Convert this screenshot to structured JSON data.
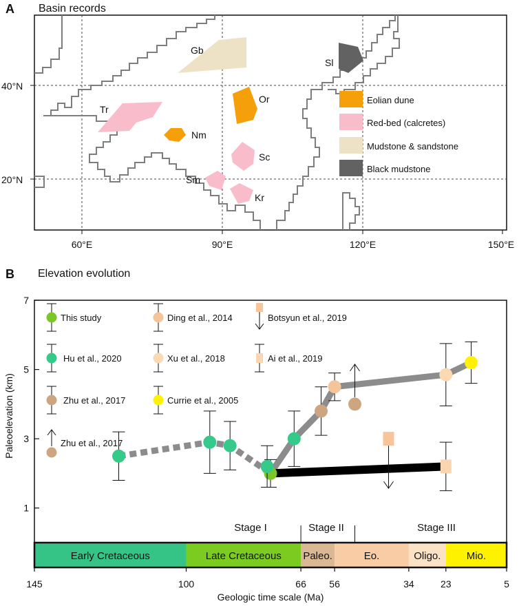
{
  "panel_a": {
    "letter": "A",
    "title": "Basin records",
    "lat_ticks": [
      "40°N",
      "20°N"
    ],
    "lon_ticks": [
      "60°E",
      "90°E",
      "120°E",
      "150°E"
    ],
    "sites": [
      {
        "code": "Gb",
        "type": "mudstone"
      },
      {
        "code": "Sl",
        "type": "black"
      },
      {
        "code": "Or",
        "type": "eolian"
      },
      {
        "code": "Tr",
        "type": "redbed"
      },
      {
        "code": "Nm",
        "type": "eolian"
      },
      {
        "code": "Sc",
        "type": "redbed"
      },
      {
        "code": "Sm",
        "type": "redbed"
      },
      {
        "code": "Kr",
        "type": "redbed"
      }
    ],
    "legend": [
      {
        "label": "Eolian dune",
        "color": "#f5a00a"
      },
      {
        "label": "Red-bed (calcretes)",
        "color": "#f9bccb"
      },
      {
        "label": "Mudstone & sandstone",
        "color": "#ede2c6"
      },
      {
        "label": "Black mudstone",
        "color": "#626262"
      }
    ]
  },
  "panel_b": {
    "letter": "B",
    "title": "Elevation evolution",
    "ylabel": "Paleoelevation (km)",
    "xlabel": "Geologic time scale (Ma)",
    "legend": [
      {
        "label": "This study",
        "color": "#7cc627"
      },
      {
        "label": "Ding et al., 2014",
        "color": "#f4c59a"
      },
      {
        "label": "Botsyun et al., 2019",
        "color": "#f8c59a"
      },
      {
        "label": "Hu et al., 2020",
        "color": "#35c98a"
      },
      {
        "label": "Xu et al., 2018",
        "color": "#fbd9b1"
      },
      {
        "label": "Ai et al., 2019",
        "color": "#fbd4b0"
      },
      {
        "label": "Zhu et al., 2017",
        "color": "#cda581"
      },
      {
        "label": "Currie et al., 2005",
        "color": "#fff200"
      },
      {
        "label": "Zhu et al., 2017",
        "color": "#cda581"
      }
    ],
    "stages": [
      "Stage I",
      "Stage II",
      "Stage III"
    ],
    "epochs": [
      {
        "label": "Early Cretaceous",
        "start": 145,
        "end": 100,
        "color": "#35c486"
      },
      {
        "label": "Late Cretaceous",
        "start": 100,
        "end": 66,
        "color": "#7ccb20"
      },
      {
        "label": "Paleo.",
        "start": 66,
        "end": 56,
        "color": "#d9b893"
      },
      {
        "label": "Eo.",
        "start": 56,
        "end": 34,
        "color": "#f8cda6"
      },
      {
        "label": "Oligo.",
        "start": 34,
        "end": 23,
        "color": "#fbe2c4"
      },
      {
        "label": "Mio.",
        "start": 23,
        "end": 5,
        "color": "#fff200"
      }
    ]
  },
  "chart_data": {
    "type": "scatter",
    "x_unit": "Ma",
    "xlim": [
      145,
      5
    ],
    "ylim": [
      0,
      7
    ],
    "x_ticks": [
      145,
      100,
      66,
      56,
      34,
      23,
      5
    ],
    "y_ticks": [
      1,
      3,
      5,
      7
    ],
    "series": [
      {
        "name": "This study",
        "color": "#7cc627",
        "points": [
          {
            "x": 75,
            "y": 2.0,
            "err": 0.4
          }
        ]
      },
      {
        "name": "Hu et al., 2020",
        "color": "#35c98a",
        "points": [
          {
            "x": 120,
            "y": 2.5,
            "err": 0.7
          },
          {
            "x": 93,
            "y": 2.9,
            "err": 0.9
          },
          {
            "x": 87,
            "y": 2.8,
            "err": 0.7
          },
          {
            "x": 76,
            "y": 2.2,
            "err": 0.6
          },
          {
            "x": 68,
            "y": 3.0,
            "err": 0.8
          }
        ]
      },
      {
        "name": "Zhu et al., 2017",
        "color": "#cda581",
        "points": [
          {
            "x": 60,
            "y": 3.8,
            "err": 0.7
          },
          {
            "x": 50,
            "y": 4.0,
            "arrow": "up"
          }
        ]
      },
      {
        "name": "Ding et al., 2014",
        "color": "#f4c59a",
        "points": [
          {
            "x": 56,
            "y": 4.5,
            "err": 0.4
          }
        ]
      },
      {
        "name": "Xu et al., 2018",
        "color": "#fbd9b1",
        "points": [
          {
            "x": 23,
            "y": 4.85,
            "err": 0.9
          }
        ]
      },
      {
        "name": "Currie et al., 2005",
        "color": "#fff200",
        "points": [
          {
            "x": 15.5,
            "y": 5.2,
            "err": 0.6
          }
        ]
      },
      {
        "name": "Botsyun et al., 2019",
        "color": "#f8c59a",
        "points": [
          {
            "x": 40,
            "y": 3.0,
            "arrow": "down"
          }
        ]
      },
      {
        "name": "Ai et al., 2019",
        "color": "#fbd4b0",
        "points": [
          {
            "x": 23,
            "y": 2.2,
            "err": 0.7
          }
        ]
      }
    ],
    "trends": [
      {
        "style": "dashed-gray",
        "points": [
          [
            120,
            2.5
          ],
          [
            93,
            2.9
          ],
          [
            87,
            2.8
          ],
          [
            75,
            2.0
          ]
        ]
      },
      {
        "style": "solid-gray",
        "points": [
          [
            75,
            2.0
          ],
          [
            68,
            3.0
          ],
          [
            60,
            3.8
          ],
          [
            56,
            4.5
          ],
          [
            23,
            4.85
          ],
          [
            15.5,
            5.2
          ]
        ]
      },
      {
        "style": "solid-black",
        "points": [
          [
            75,
            2.0
          ],
          [
            23,
            2.2
          ]
        ]
      }
    ]
  }
}
